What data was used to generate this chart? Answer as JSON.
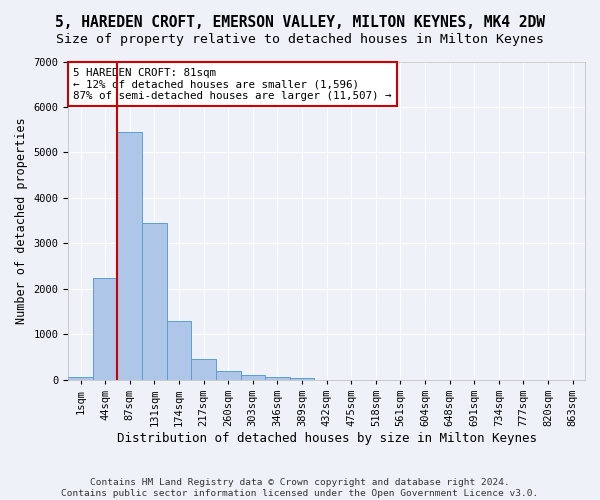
{
  "title": "5, HAREDEN CROFT, EMERSON VALLEY, MILTON KEYNES, MK4 2DW",
  "subtitle": "Size of property relative to detached houses in Milton Keynes",
  "xlabel": "Distribution of detached houses by size in Milton Keynes",
  "ylabel": "Number of detached properties",
  "footer_line1": "Contains HM Land Registry data © Crown copyright and database right 2024.",
  "footer_line2": "Contains public sector information licensed under the Open Government Licence v3.0.",
  "bin_labels": [
    "1sqm",
    "44sqm",
    "87sqm",
    "131sqm",
    "174sqm",
    "217sqm",
    "260sqm",
    "303sqm",
    "346sqm",
    "389sqm",
    "432sqm",
    "475sqm",
    "518sqm",
    "561sqm",
    "604sqm",
    "648sqm",
    "691sqm",
    "734sqm",
    "777sqm",
    "820sqm",
    "863sqm"
  ],
  "bar_values": [
    75,
    2250,
    5450,
    3450,
    1300,
    470,
    200,
    100,
    70,
    50,
    0,
    0,
    0,
    0,
    0,
    0,
    0,
    0,
    0,
    0,
    0
  ],
  "bar_color": "#aec6e8",
  "bar_edge_color": "#5a9fd4",
  "vline_x": 1.5,
  "vline_color": "#cc0000",
  "annotation_text": "5 HAREDEN CROFT: 81sqm\n← 12% of detached houses are smaller (1,596)\n87% of semi-detached houses are larger (11,507) →",
  "annotation_box_color": "white",
  "annotation_box_edge_color": "#cc0000",
  "ylim": [
    0,
    7000
  ],
  "background_color": "#eef2f8",
  "axes_background": "#eef2f8",
  "grid_color": "white",
  "title_fontsize": 10.5,
  "subtitle_fontsize": 9.5,
  "xlabel_fontsize": 9,
  "ylabel_fontsize": 8.5,
  "tick_fontsize": 7.5,
  "footer_fontsize": 6.8
}
